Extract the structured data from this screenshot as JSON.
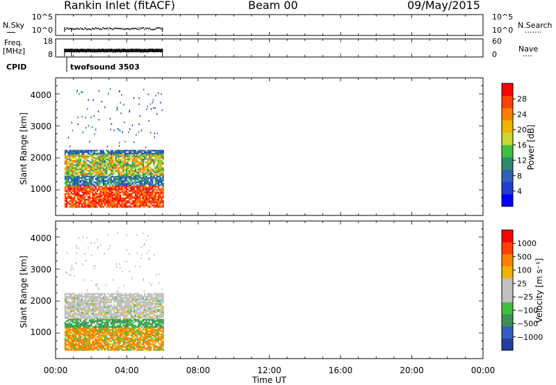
{
  "header": {
    "station": "Rankin Inlet (fitACF)",
    "beam": "Beam 00",
    "date": "09/May/2015"
  },
  "side_labels": {
    "nsky": "N.Sky",
    "freq_line1": "Freq.",
    "freq_line2": "[MHz]",
    "cpid": "CPID",
    "nsearch": "N.Search",
    "nsearch_dots": "·······",
    "nave": "Nave",
    "nave_dots": "····"
  },
  "cpid_value": "twofsound 3503",
  "chart_data": [
    {
      "type": "line",
      "title": "N.Sky / N.Search",
      "left_ticks": [
        "10^5",
        "10^0"
      ],
      "right_ticks": [
        "10^5",
        "10^0"
      ],
      "x_range_hours": [
        0,
        24
      ],
      "active_hours": [
        0.5,
        6.0
      ]
    },
    {
      "type": "line",
      "title": "Freq / Nave",
      "left_ticks": [
        "18",
        "8"
      ],
      "right_ticks": [
        "60",
        "0"
      ],
      "x_range_hours": [
        0,
        24
      ],
      "active_hours": [
        0.5,
        6.0
      ]
    },
    {
      "type": "heatmap",
      "ylabel": "Slant Range [km]",
      "yticks": [
        "4000",
        "3000",
        "2000",
        "1000"
      ],
      "ylim": [
        200,
        4500
      ],
      "x_range_hours": [
        0,
        24
      ],
      "data_hours": [
        0.5,
        6.0
      ],
      "colorbar_label": "Power [dB]",
      "colorbar_ticks": [
        "28",
        "24",
        "20",
        "16",
        "12",
        "8",
        "4"
      ],
      "colorbar_colors": [
        "#0000ff",
        "#1f3fd0",
        "#2f62b0",
        "#2f8a6a",
        "#3fbf3f",
        "#c8d830",
        "#f0b400",
        "#ff7f00",
        "#ff4000",
        "#ff0000"
      ]
    },
    {
      "type": "heatmap",
      "ylabel": "Slant Range [km]",
      "yticks": [
        "4000",
        "3000",
        "2000",
        "1000"
      ],
      "ylim": [
        200,
        4500
      ],
      "x_range_hours": [
        0,
        24
      ],
      "data_hours": [
        0.5,
        6.0
      ],
      "colorbar_label": "Velocity [m s⁻¹]",
      "colorbar_ticks": [
        "1000",
        "500",
        "100",
        "25",
        "−25",
        "−100",
        "−500",
        "−1000"
      ],
      "colorbar_colors": [
        "#2040a0",
        "#3060c0",
        "#3f8f5a",
        "#3fbf3f",
        "#c0c0c0",
        "#c0c0c0",
        "#f0b400",
        "#ff7f00",
        "#ff4000",
        "#ff0000"
      ]
    }
  ],
  "x_axis": {
    "ticks": [
      "00:00",
      "04:00",
      "08:00",
      "12:00",
      "16:00",
      "20:00",
      "00:00"
    ],
    "label": "Time UT"
  }
}
